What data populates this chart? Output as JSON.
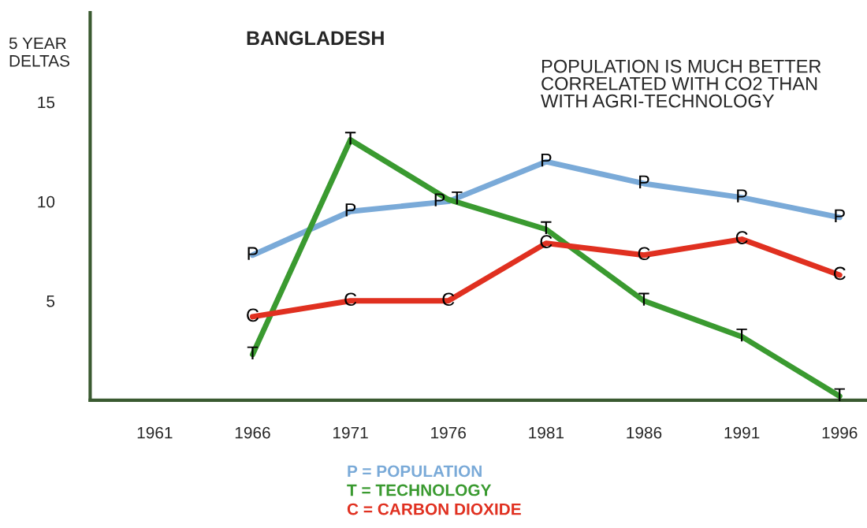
{
  "chart_data": {
    "type": "line",
    "title": "BANGLADESH",
    "ylabel": "5 YEAR\nDELTAS",
    "annotations": [
      "POPULATION IS MUCH BETTER\nCORRELATED WITH CO2 THAN\nWITH AGRI-TECHNOLOGY"
    ],
    "x": [
      1966,
      1971,
      1976,
      1981,
      1986,
      1991,
      1996
    ],
    "series": [
      {
        "name": "P = POPULATION",
        "color": "#7aaad8",
        "values": [
          7.3,
          9.5,
          10.0,
          12.0,
          10.9,
          10.2,
          9.2
        ],
        "value_labels": [
          "P",
          "P",
          "P",
          "P",
          "P",
          "P",
          "P"
        ]
      },
      {
        "name": "T = TECHNOLOGY",
        "color": "#3a9a30",
        "values": [
          2.3,
          13.1,
          10.1,
          8.6,
          5.0,
          3.2,
          0.2
        ],
        "value_labels": [
          "T",
          "T",
          "T",
          "T",
          "T",
          "T",
          "T"
        ]
      },
      {
        "name": "C = CARBON DIOXIDE",
        "color": "#e03020",
        "values": [
          4.2,
          5.0,
          5.0,
          7.9,
          7.3,
          8.1,
          6.3
        ],
        "value_labels": [
          "C",
          "C",
          "C",
          "C",
          "C",
          "C",
          "C"
        ]
      }
    ],
    "xlim": [
      1957.7,
      1997.4
    ],
    "xticks": [
      1961,
      1966,
      1971,
      1976,
      1981,
      1986,
      1991,
      1996
    ],
    "ylim": [
      0,
      19.5
    ],
    "yticks": [
      5,
      10,
      15
    ],
    "grid": false,
    "legend": "bottom"
  }
}
